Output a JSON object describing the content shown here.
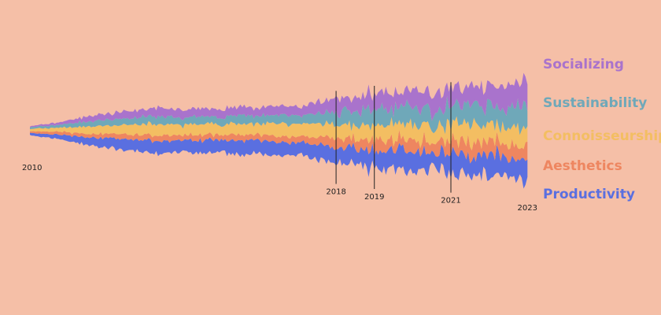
{
  "chart_data": {
    "type": "area",
    "subtype": "streamgraph",
    "title": "",
    "xlabel": "",
    "ylabel": "",
    "x_range": [
      2010,
      2023.2
    ],
    "year_markers": [
      {
        "year": 2010,
        "label": "2010",
        "line": false
      },
      {
        "year": 2018,
        "label": "2018",
        "line": true
      },
      {
        "year": 2019,
        "label": "2019",
        "line": true
      },
      {
        "year": 2021,
        "label": "2021",
        "line": true
      },
      {
        "year": 2023,
        "label": "2023",
        "line": false
      }
    ],
    "x": [
      2010.0,
      2010.5,
      2011.0,
      2011.5,
      2012.0,
      2012.5,
      2013.0,
      2013.5,
      2014.0,
      2014.5,
      2015.0,
      2015.5,
      2016.0,
      2016.5,
      2017.0,
      2017.5,
      2018.0,
      2018.5,
      2019.0,
      2019.5,
      2020.0,
      2020.5,
      2021.0,
      2021.5,
      2022.0,
      2022.5,
      2023.0
    ],
    "series": [
      {
        "name": "Productivity",
        "color": "#5A6FE0",
        "values": [
          4,
          6,
          9,
          13,
          16,
          18,
          20,
          21,
          19,
          22,
          20,
          23,
          21,
          24,
          22,
          26,
          27,
          25,
          30,
          29,
          31,
          28,
          32,
          30,
          34,
          35,
          38
        ]
      },
      {
        "name": "Aesthetics",
        "color": "#EE8660",
        "values": [
          3,
          4,
          5,
          6,
          7,
          8,
          8,
          9,
          8,
          9,
          8,
          10,
          9,
          11,
          10,
          12,
          16,
          14,
          18,
          17,
          19,
          18,
          20,
          21,
          22,
          23,
          24
        ]
      },
      {
        "name": "Connoisseurship",
        "color": "#F3BE62",
        "values": [
          4,
          6,
          9,
          12,
          14,
          16,
          17,
          18,
          17,
          18,
          17,
          19,
          18,
          20,
          19,
          21,
          23,
          22,
          26,
          25,
          27,
          26,
          28,
          29,
          30,
          31,
          32
        ]
      },
      {
        "name": "Sustainability",
        "color": "#6FA8B9",
        "values": [
          3,
          4,
          6,
          8,
          10,
          11,
          12,
          13,
          12,
          13,
          12,
          14,
          13,
          15,
          14,
          16,
          22,
          21,
          27,
          26,
          28,
          27,
          30,
          29,
          32,
          33,
          34
        ]
      },
      {
        "name": "Socializing",
        "color": "#A973CC",
        "values": [
          2,
          3,
          5,
          8,
          10,
          12,
          13,
          14,
          13,
          14,
          13,
          15,
          14,
          16,
          15,
          17,
          24,
          22,
          28,
          26,
          29,
          27,
          31,
          30,
          33,
          35,
          38
        ]
      }
    ],
    "legend": "right"
  }
}
